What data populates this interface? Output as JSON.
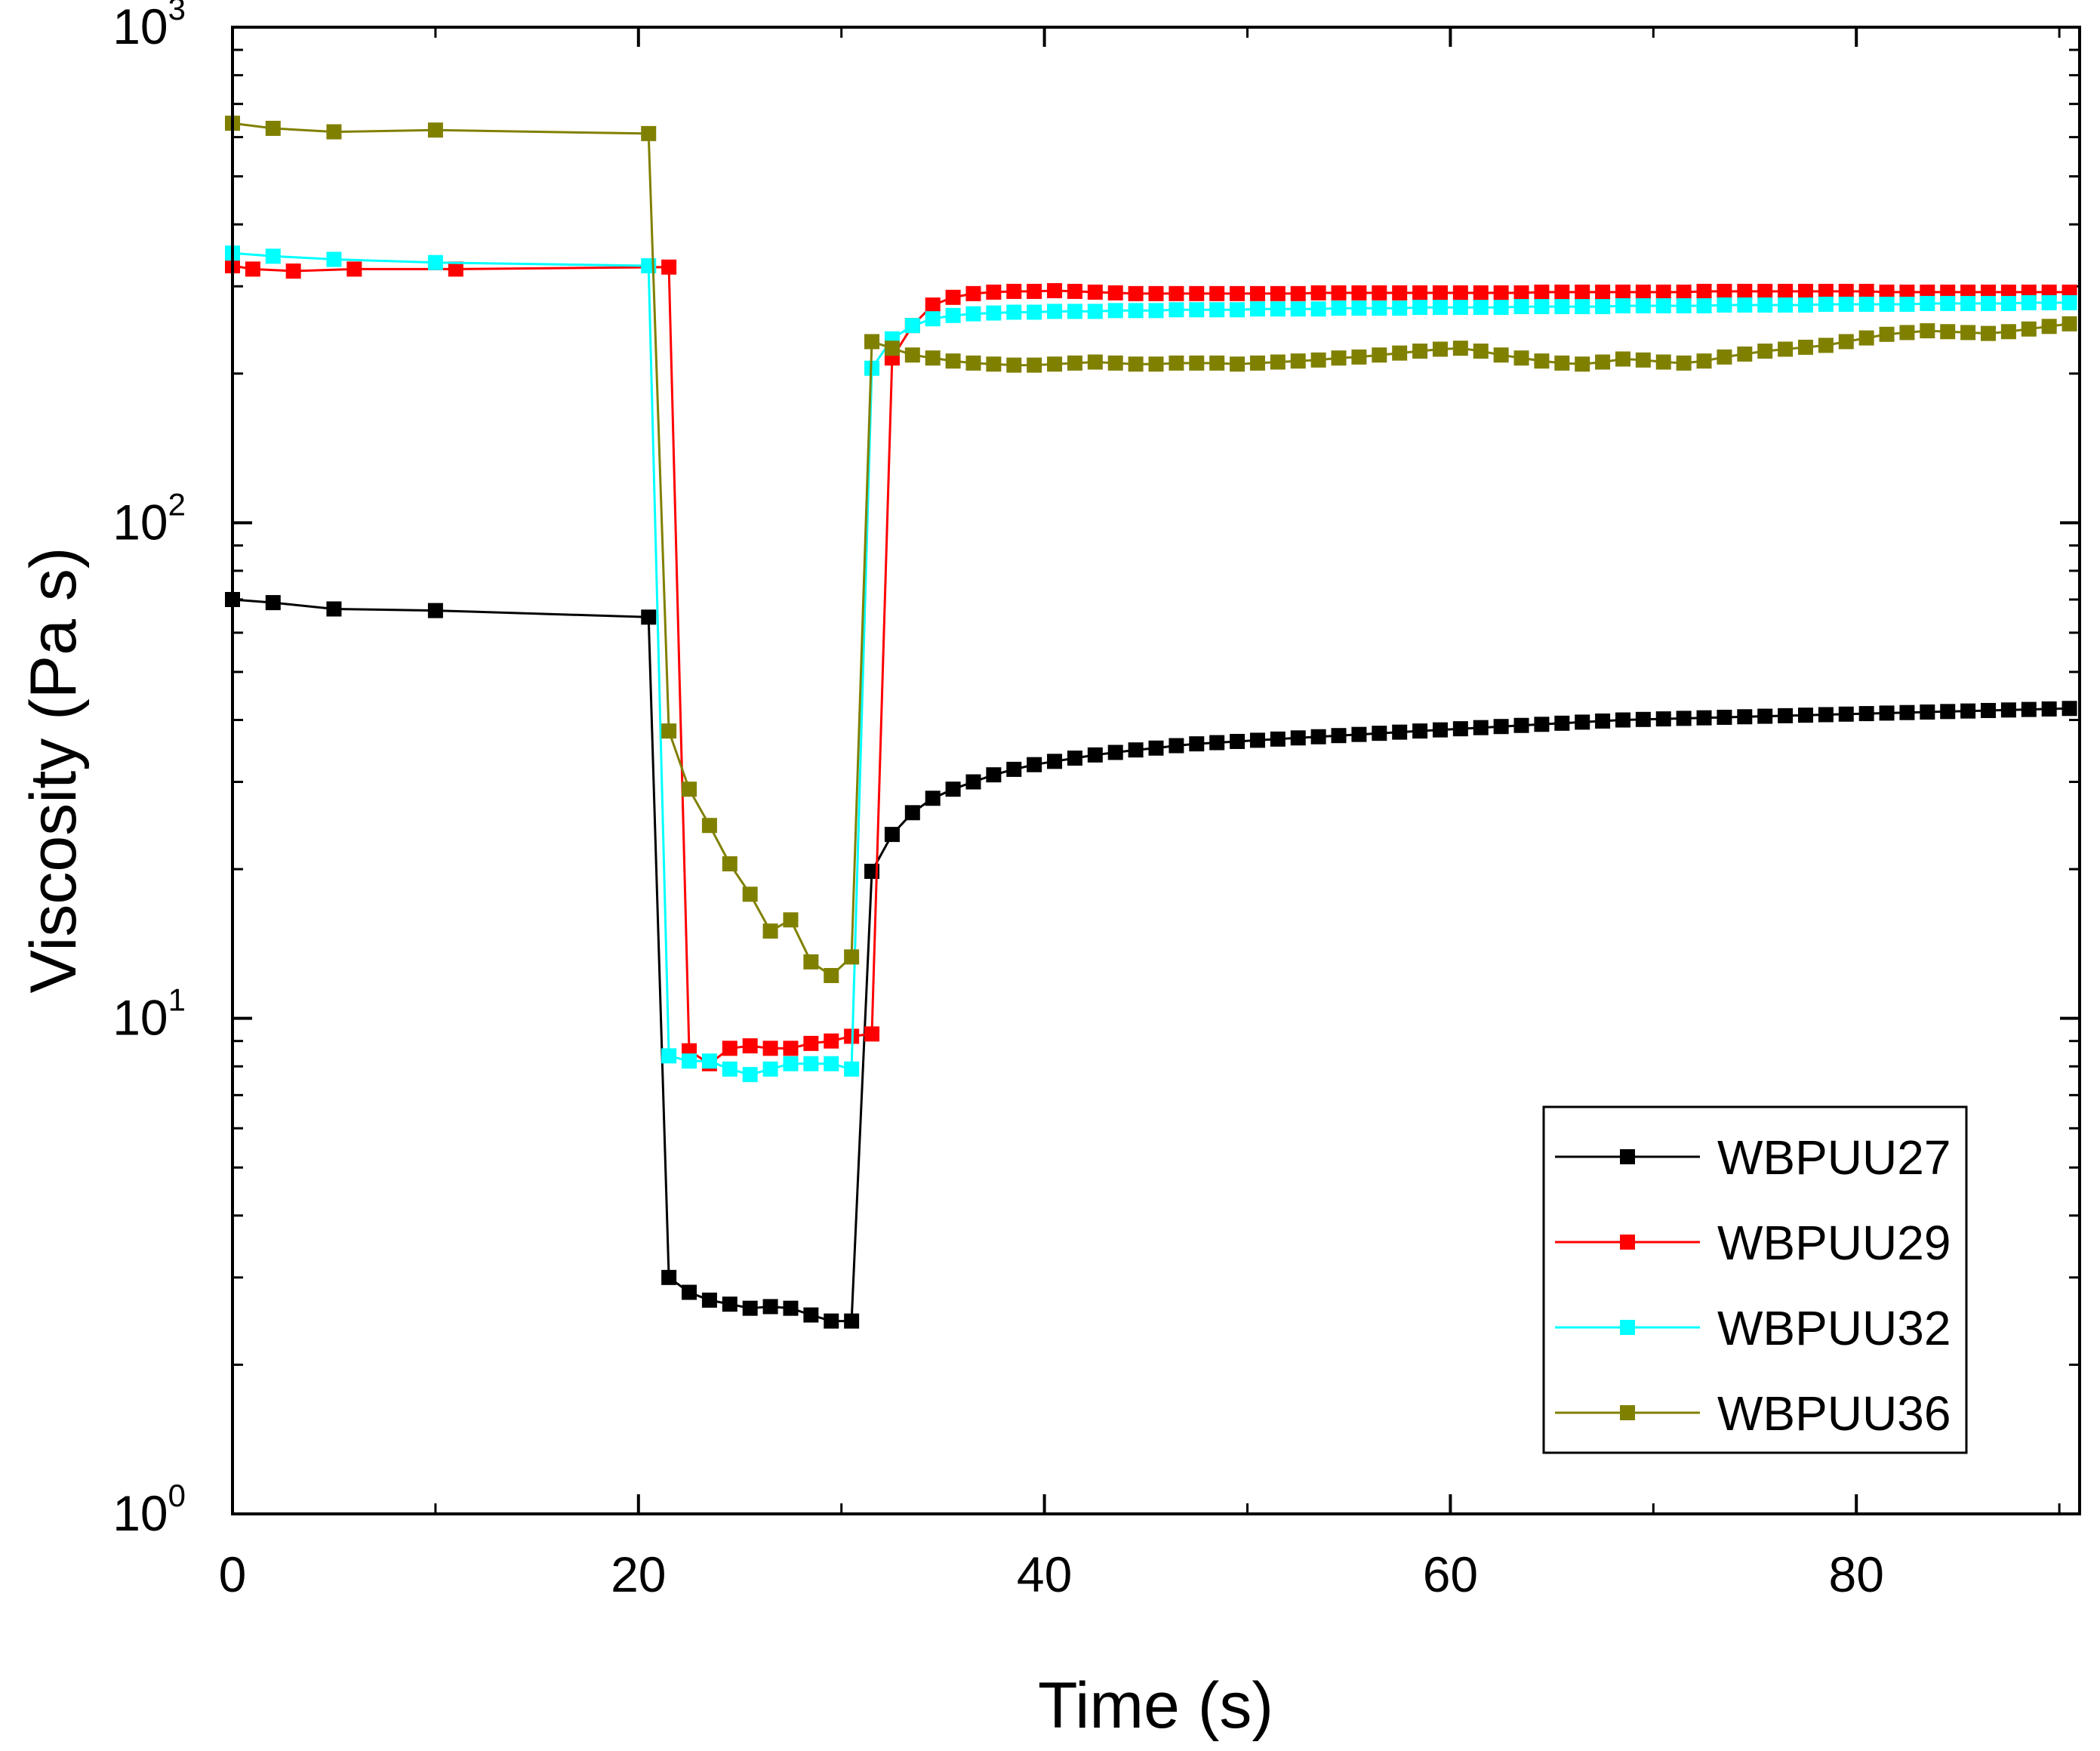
{
  "chart_data": {
    "type": "line",
    "title": "",
    "xlabel": "Time (s)",
    "ylabel": "Viscosity (Pa s)",
    "yscale": "log",
    "xlim": [
      0,
      91
    ],
    "ylim": [
      1,
      1000
    ],
    "x_ticks": [
      0,
      20,
      40,
      60,
      80
    ],
    "x_tick_labels": [
      "0",
      "20",
      "40",
      "60",
      "80"
    ],
    "x_minor_ticks": [
      10,
      30,
      50,
      70,
      90
    ],
    "y_ticks": [
      {
        "value": 1,
        "base": "10",
        "exp": "0"
      },
      {
        "value": 10,
        "base": "10",
        "exp": "1"
      },
      {
        "value": 100,
        "base": "10",
        "exp": "2"
      },
      {
        "value": 1000,
        "base": "10",
        "exp": "3"
      }
    ],
    "legend_position": "bottom-right",
    "series": [
      {
        "name": "WBPUU27",
        "color": "#000000",
        "x": [
          0,
          2,
          5,
          10,
          20.5,
          21.5,
          22.5,
          23.5,
          24.5,
          25.5,
          26.5,
          27.5,
          28.5,
          29.5,
          30.5,
          31.5,
          32.5,
          33.5,
          34.5,
          35.5,
          36.5,
          37.5,
          38.5,
          39.5,
          40.5,
          41.5,
          42.5,
          43.5,
          44.5,
          45.5,
          46.5,
          47.5,
          48.5,
          49.5,
          50.5,
          51.5,
          52.5,
          53.5,
          54.5,
          55.5,
          56.5,
          57.5,
          58.5,
          59.5,
          60.5,
          61.5,
          62.5,
          63.5,
          64.5,
          65.5,
          66.5,
          67.5,
          68.5,
          69.5,
          70.5,
          71.5,
          72.5,
          73.5,
          74.5,
          75.5,
          76.5,
          77.5,
          78.5,
          79.5,
          80.5,
          81.5,
          82.5,
          83.5,
          84.5,
          85.5,
          86.5,
          87.5,
          88.5,
          89.5,
          90.5
        ],
        "values": [
          70,
          69,
          67,
          66.5,
          64.5,
          3.0,
          2.8,
          2.7,
          2.65,
          2.6,
          2.62,
          2.6,
          2.52,
          2.45,
          2.45,
          19.8,
          23.5,
          26.0,
          27.8,
          29.0,
          30.0,
          31.0,
          31.8,
          32.5,
          33.0,
          33.5,
          34.0,
          34.4,
          34.8,
          35.1,
          35.5,
          35.8,
          36.0,
          36.2,
          36.4,
          36.6,
          36.8,
          37.0,
          37.2,
          37.4,
          37.6,
          37.8,
          38.0,
          38.2,
          38.4,
          38.6,
          38.8,
          39.0,
          39.2,
          39.4,
          39.6,
          39.8,
          40.0,
          40.1,
          40.2,
          40.3,
          40.4,
          40.5,
          40.6,
          40.7,
          40.8,
          40.9,
          41.0,
          41.1,
          41.2,
          41.3,
          41.4,
          41.5,
          41.6,
          41.7,
          41.8,
          41.9,
          42.0,
          42.1,
          42.2
        ]
      },
      {
        "name": "WBPUU29",
        "color": "#ff0000",
        "x": [
          0,
          1,
          3,
          6,
          11,
          21.5,
          22.5,
          23.5,
          24.5,
          25.5,
          26.5,
          27.5,
          28.5,
          29.5,
          30.5,
          31.5,
          32.5,
          33.5,
          34.5,
          35.5,
          36.5,
          37.5,
          38.5,
          39.5,
          40.5,
          41.5,
          42.5,
          43.5,
          44.5,
          45.5,
          46.5,
          47.5,
          48.5,
          49.5,
          50.5,
          51.5,
          52.5,
          53.5,
          54.5,
          55.5,
          56.5,
          57.5,
          58.5,
          59.5,
          60.5,
          61.5,
          62.5,
          63.5,
          64.5,
          65.5,
          66.5,
          67.5,
          68.5,
          69.5,
          70.5,
          71.5,
          72.5,
          73.5,
          74.5,
          75.5,
          76.5,
          77.5,
          78.5,
          79.5,
          80.5,
          81.5,
          82.5,
          83.5,
          84.5,
          85.5,
          86.5,
          87.5,
          88.5,
          89.5,
          90.5
        ],
        "values": [
          330,
          325,
          322,
          325,
          325,
          328,
          8.6,
          8.1,
          8.7,
          8.8,
          8.7,
          8.7,
          8.9,
          9.0,
          9.2,
          9.3,
          215,
          250,
          275,
          285,
          290,
          292,
          293,
          293,
          294,
          293,
          292,
          291,
          290,
          290,
          290,
          290,
          290,
          290,
          290,
          290,
          290,
          291,
          291,
          291,
          291,
          291,
          291,
          291,
          291,
          291,
          291,
          291,
          292,
          292,
          292,
          292,
          292,
          292,
          292,
          292,
          293,
          293,
          293,
          293,
          293,
          293,
          293,
          293,
          293,
          292,
          292,
          292,
          292,
          292,
          292,
          292,
          292,
          292,
          292
        ]
      },
      {
        "name": "WBPUU32",
        "color": "#00ffff",
        "x": [
          0,
          2,
          5,
          10,
          20.5,
          21.5,
          22.5,
          23.5,
          24.5,
          25.5,
          26.5,
          27.5,
          28.5,
          29.5,
          30.5,
          31.5,
          32.5,
          33.5,
          34.5,
          35.5,
          36.5,
          37.5,
          38.5,
          39.5,
          40.5,
          41.5,
          42.5,
          43.5,
          44.5,
          45.5,
          46.5,
          47.5,
          48.5,
          49.5,
          50.5,
          51.5,
          52.5,
          53.5,
          54.5,
          55.5,
          56.5,
          57.5,
          58.5,
          59.5,
          60.5,
          61.5,
          62.5,
          63.5,
          64.5,
          65.5,
          66.5,
          67.5,
          68.5,
          69.5,
          70.5,
          71.5,
          72.5,
          73.5,
          74.5,
          75.5,
          76.5,
          77.5,
          78.5,
          79.5,
          80.5,
          81.5,
          82.5,
          83.5,
          84.5,
          85.5,
          86.5,
          87.5,
          88.5,
          89.5,
          90.5
        ],
        "values": [
          350,
          345,
          340,
          335,
          330,
          8.4,
          8.2,
          8.2,
          7.9,
          7.7,
          7.9,
          8.1,
          8.1,
          8.1,
          7.9,
          205,
          235,
          250,
          258,
          262,
          264,
          265,
          266,
          266,
          267,
          267,
          267,
          268,
          268,
          268,
          269,
          269,
          269,
          269,
          270,
          270,
          270,
          270,
          271,
          271,
          271,
          271,
          272,
          272,
          272,
          272,
          272,
          273,
          273,
          273,
          273,
          273,
          274,
          274,
          274,
          274,
          274,
          275,
          275,
          275,
          275,
          275,
          276,
          276,
          276,
          276,
          276,
          277,
          277,
          277,
          277,
          277,
          278,
          278,
          278
        ]
      },
      {
        "name": "WBPUU36",
        "color": "#808000",
        "x": [
          0,
          2,
          5,
          10,
          20.5,
          21.5,
          22.5,
          23.5,
          24.5,
          25.5,
          26.5,
          27.5,
          28.5,
          29.5,
          30.5,
          31.5,
          32.5,
          33.5,
          34.5,
          35.5,
          36.5,
          37.5,
          38.5,
          39.5,
          40.5,
          41.5,
          42.5,
          43.5,
          44.5,
          45.5,
          46.5,
          47.5,
          48.5,
          49.5,
          50.5,
          51.5,
          52.5,
          53.5,
          54.5,
          55.5,
          56.5,
          57.5,
          58.5,
          59.5,
          60.5,
          61.5,
          62.5,
          63.5,
          64.5,
          65.5,
          66.5,
          67.5,
          68.5,
          69.5,
          70.5,
          71.5,
          72.5,
          73.5,
          74.5,
          75.5,
          76.5,
          77.5,
          78.5,
          79.5,
          80.5,
          81.5,
          82.5,
          83.5,
          84.5,
          85.5,
          86.5,
          87.5,
          88.5,
          89.5,
          90.5
        ],
        "values": [
          640,
          625,
          615,
          620,
          610,
          38,
          29,
          24.5,
          20.5,
          17.8,
          15.0,
          15.8,
          13.0,
          12.2,
          13.3,
          232,
          225,
          218,
          215,
          212,
          210,
          209,
          208,
          208,
          209,
          210,
          211,
          210,
          209,
          209,
          210,
          210,
          210,
          209,
          210,
          211,
          212,
          213,
          215,
          216,
          218,
          220,
          222,
          224,
          225,
          222,
          218,
          215,
          212,
          210,
          209,
          211,
          214,
          213,
          211,
          210,
          212,
          216,
          219,
          222,
          224,
          226,
          228,
          232,
          236,
          240,
          242,
          244,
          243,
          242,
          241,
          243,
          246,
          249,
          252
        ]
      }
    ]
  }
}
